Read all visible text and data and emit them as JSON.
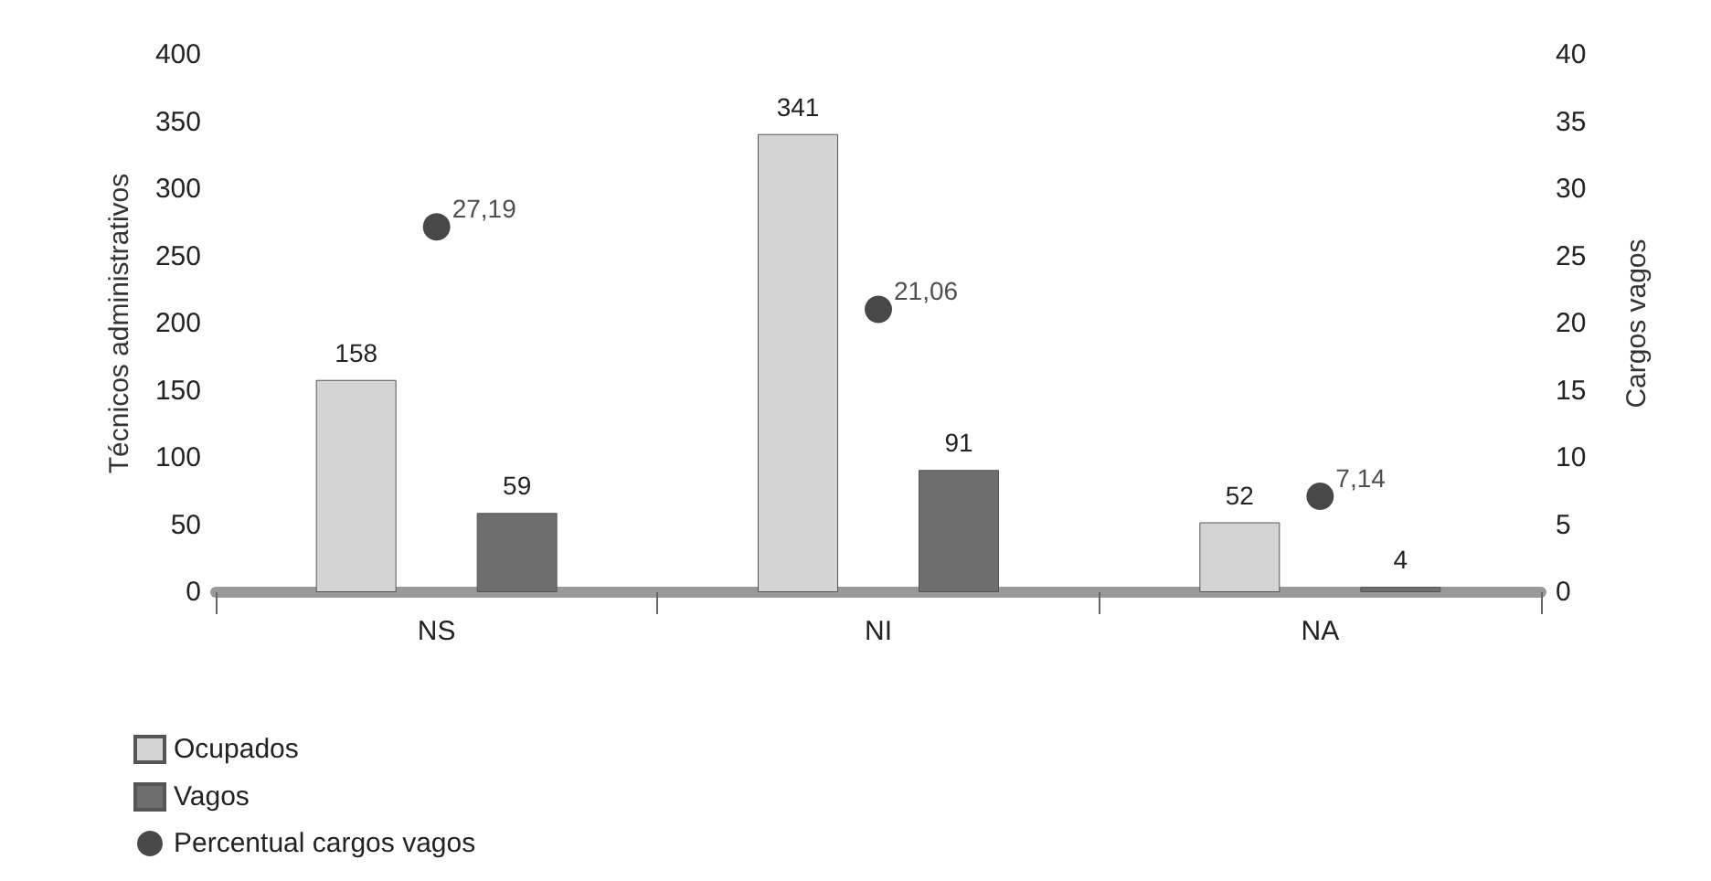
{
  "chart_data": {
    "type": "bar",
    "categories": [
      "NS",
      "NI",
      "NA"
    ],
    "ylabel": "Técnicos administrativos",
    "y2label": "Cargos vagos",
    "series": [
      {
        "name": "Ocupados",
        "color": "#d4d4d4",
        "values": [
          158,
          341,
          52
        ],
        "value_labels": [
          "158",
          "341",
          "52"
        ]
      },
      {
        "name": "Vagos",
        "color": "#6e6e6e",
        "values": [
          59,
          91,
          4
        ],
        "value_labels": [
          "59",
          "91",
          "4"
        ]
      },
      {
        "name": "Percentual cargos vagos",
        "type": "scatter",
        "axis": "y2",
        "color": "#1a1a1a",
        "values": [
          27.19,
          21.06,
          7.14
        ],
        "value_labels": [
          "27,19",
          "21,06",
          "7,14"
        ]
      }
    ],
    "ylim": [
      0,
      400
    ],
    "yticks": [
      0,
      50,
      100,
      150,
      200,
      250,
      300,
      350,
      400
    ],
    "y2lim": [
      0,
      40
    ],
    "y2ticks": [
      0,
      5,
      10,
      15,
      20,
      25,
      30,
      35,
      40
    ],
    "grid": false,
    "legend": "bottom left",
    "marker": "circle"
  }
}
